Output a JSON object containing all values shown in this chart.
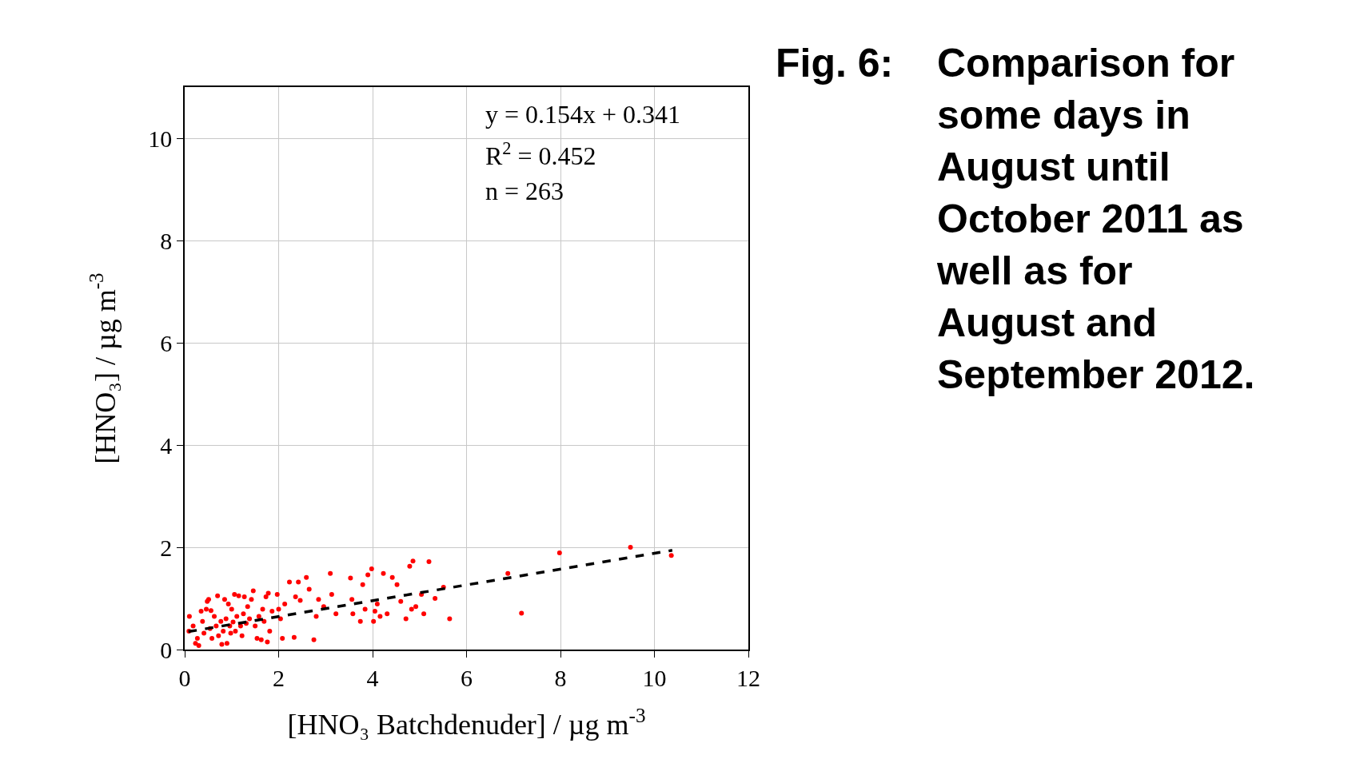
{
  "chart_data": {
    "type": "scatter",
    "xlabel": "[HNO₃ Batchdenuder] / µg m$^{-3}$",
    "ylabel": "[HNO₃] / µg m$^{-3}$",
    "annotations": [
      "y = 0.154x + 0.341",
      "R$^{2}$ = 0.452",
      "n = 263",
      "Fig. 6: Comparison for some days in August until October 2011 as well as for August and September 2012."
    ],
    "xlim": [
      0,
      12
    ],
    "xticks": [
      0,
      2,
      4,
      6,
      8,
      10,
      12
    ],
    "ylim": [
      0,
      11
    ],
    "yticks": [
      0,
      2,
      4,
      6,
      8,
      10
    ],
    "grid": true,
    "series": [
      {
        "marker": "circle",
        "color": "#ff0000",
        "x": [
          0.1,
          0.09,
          0.18,
          0.23,
          0.27,
          0.3,
          0.35,
          0.38,
          0.41,
          0.46,
          0.48,
          0.51,
          0.54,
          0.56,
          0.58,
          0.63,
          0.67,
          0.7,
          0.72,
          0.77,
          0.79,
          0.82,
          0.85,
          0.88,
          0.9,
          0.93,
          0.96,
          0.98,
          1.0,
          1.03,
          1.06,
          1.08,
          1.11,
          1.15,
          1.19,
          1.22,
          1.25,
          1.27,
          1.31,
          1.34,
          1.38,
          1.42,
          1.46,
          1.5,
          1.54,
          1.58,
          1.63,
          1.66,
          1.69,
          1.73,
          1.76,
          1.78,
          1.81,
          1.86,
          1.97,
          2.0,
          2.04,
          2.08,
          2.13,
          2.23,
          2.33,
          2.36,
          2.42,
          2.46,
          2.59,
          2.65,
          2.75,
          2.8,
          2.85,
          2.96,
          3.1,
          3.13,
          3.22,
          3.53,
          3.56,
          3.58,
          3.74,
          3.79,
          3.84,
          3.9,
          3.98,
          4.02,
          4.05,
          4.1,
          4.16,
          4.23,
          4.31,
          4.42,
          4.52,
          4.6,
          4.71,
          4.79,
          4.83,
          4.86,
          4.92,
          5.04,
          5.09,
          5.2,
          5.33,
          5.51,
          5.64,
          6.88,
          7.17,
          7.98,
          9.49,
          10.36
        ],
        "values": [
          0.65,
          0.36,
          0.46,
          0.12,
          0.22,
          0.08,
          0.75,
          0.55,
          0.32,
          0.79,
          0.94,
          0.98,
          0.41,
          0.76,
          0.22,
          0.65,
          0.46,
          1.05,
          0.27,
          0.55,
          0.1,
          0.36,
          0.98,
          0.6,
          0.12,
          0.89,
          0.46,
          0.32,
          0.79,
          0.54,
          1.08,
          0.36,
          0.65,
          1.05,
          0.46,
          0.27,
          0.7,
          1.03,
          0.51,
          0.84,
          0.6,
          0.98,
          1.15,
          0.46,
          0.22,
          0.65,
          0.19,
          0.79,
          0.55,
          1.03,
          0.15,
          1.1,
          0.36,
          0.75,
          1.08,
          0.79,
          0.6,
          0.22,
          0.89,
          1.32,
          0.24,
          1.03,
          1.32,
          0.96,
          1.41,
          1.18,
          0.19,
          0.65,
          0.98,
          0.84,
          1.49,
          1.08,
          0.7,
          1.4,
          0.98,
          0.7,
          0.55,
          1.27,
          0.79,
          1.46,
          1.58,
          0.55,
          0.75,
          0.89,
          0.65,
          1.49,
          0.7,
          1.41,
          1.27,
          0.94,
          0.6,
          1.63,
          0.79,
          1.73,
          0.84,
          1.08,
          0.7,
          1.72,
          1.0,
          1.22,
          0.6,
          1.49,
          0.71,
          1.89,
          2.0,
          1.84
        ]
      },
      {
        "type": "line",
        "line_style": "dashed",
        "marker": "none",
        "color": "#000000",
        "x": [
          0.08,
          10.38
        ],
        "values": [
          0.35,
          1.94
        ]
      }
    ]
  }
}
